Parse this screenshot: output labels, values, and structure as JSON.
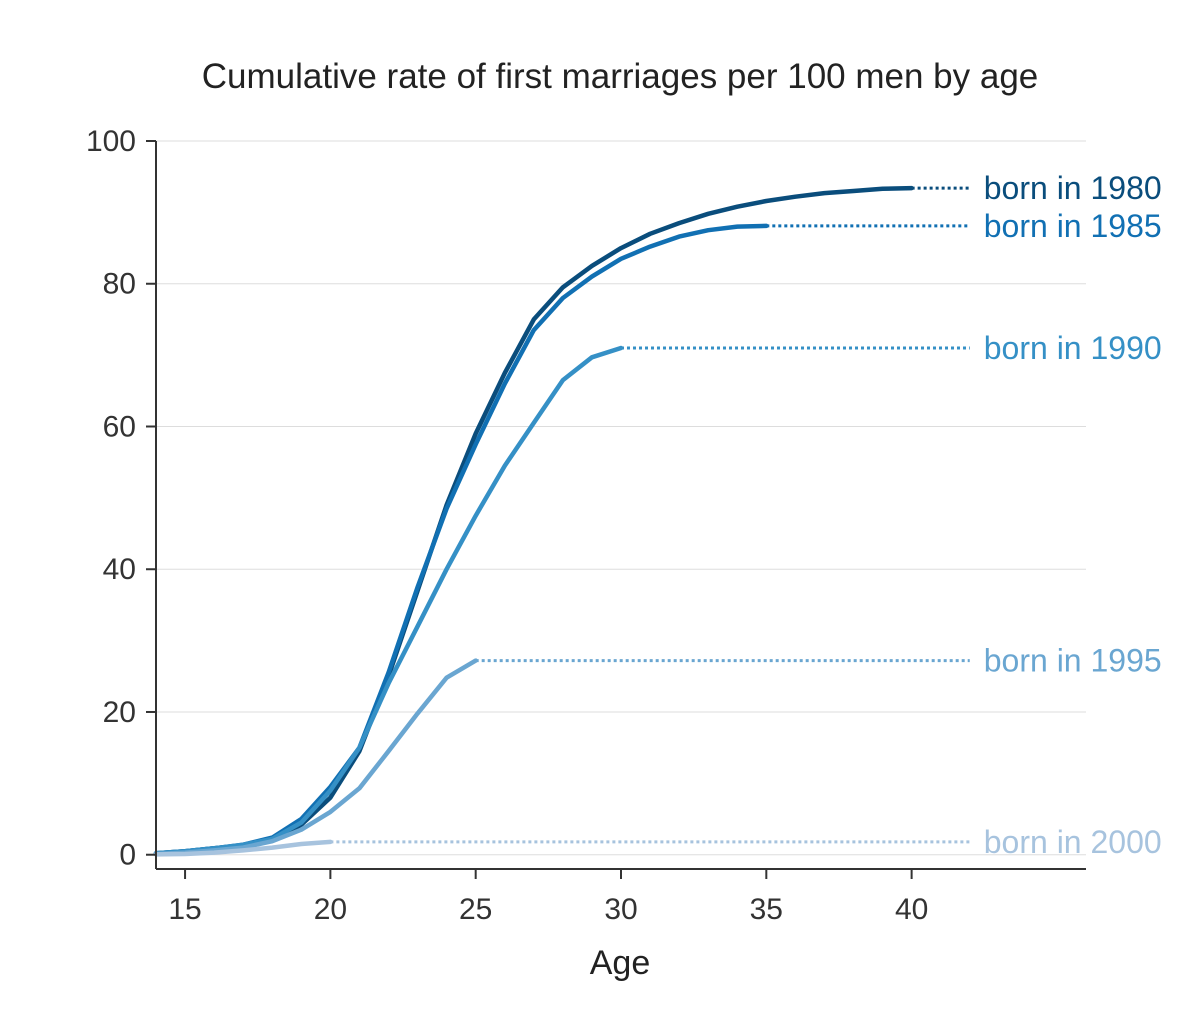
{
  "chart_data": {
    "type": "line",
    "title": "Cumulative rate of first marriages per 100 men by age",
    "xlabel": "Age",
    "ylabel": "",
    "xlim": [
      14,
      46
    ],
    "ylim": [
      -2,
      100
    ],
    "x_ticks": [
      15,
      20,
      25,
      30,
      35,
      40
    ],
    "y_ticks": [
      0,
      20,
      40,
      60,
      80,
      100
    ],
    "grid": "horizontal",
    "extension_end_age": 42,
    "series": [
      {
        "name": "born in 1980",
        "color": "#0a4d7c",
        "x": [
          14,
          15,
          16,
          17,
          18,
          19,
          20,
          21,
          22,
          23,
          24,
          25,
          26,
          27,
          28,
          29,
          30,
          31,
          32,
          33,
          34,
          35,
          36,
          37,
          38,
          39,
          40
        ],
        "values": [
          0.2,
          0.5,
          0.9,
          1.3,
          2.0,
          4.2,
          8.0,
          14.5,
          25.0,
          37.0,
          49.0,
          59.0,
          67.5,
          75.0,
          79.5,
          82.5,
          85.0,
          87.0,
          88.5,
          89.8,
          90.8,
          91.6,
          92.2,
          92.7,
          93.0,
          93.3,
          93.4
        ]
      },
      {
        "name": "born in 1985",
        "color": "#1170b3",
        "x": [
          14,
          15,
          16,
          17,
          18,
          19,
          20,
          21,
          22,
          23,
          24,
          25,
          26,
          27,
          28,
          29,
          30,
          31,
          32,
          33,
          34,
          35
        ],
        "values": [
          0.2,
          0.5,
          0.9,
          1.4,
          2.4,
          5.0,
          9.5,
          15.0,
          25.5,
          37.5,
          48.5,
          57.5,
          66.0,
          73.5,
          78.0,
          81.0,
          83.5,
          85.2,
          86.6,
          87.5,
          88.0,
          88.1
        ]
      },
      {
        "name": "born in 1990",
        "color": "#3590c6",
        "x": [
          14,
          15,
          16,
          17,
          18,
          19,
          20,
          21,
          22,
          23,
          24,
          25,
          26,
          27,
          28,
          29,
          30
        ],
        "values": [
          0.2,
          0.5,
          0.9,
          1.4,
          2.2,
          4.5,
          9.0,
          15.0,
          24.0,
          32.0,
          40.0,
          47.5,
          54.5,
          60.5,
          66.5,
          69.7,
          71.0
        ]
      },
      {
        "name": "born in 1995",
        "color": "#6aa6d1",
        "x": [
          14,
          15,
          16,
          17,
          18,
          19,
          20,
          21,
          22,
          23,
          24,
          25
        ],
        "values": [
          0.1,
          0.3,
          0.6,
          1.0,
          1.9,
          3.5,
          6.0,
          9.3,
          14.5,
          19.8,
          24.8,
          27.2
        ]
      },
      {
        "name": "born in 2000",
        "color": "#a7c3de",
        "x": [
          14,
          15,
          16,
          17,
          18,
          19,
          20
        ],
        "values": [
          0.05,
          0.1,
          0.3,
          0.6,
          1.0,
          1.5,
          1.8
        ]
      }
    ]
  }
}
